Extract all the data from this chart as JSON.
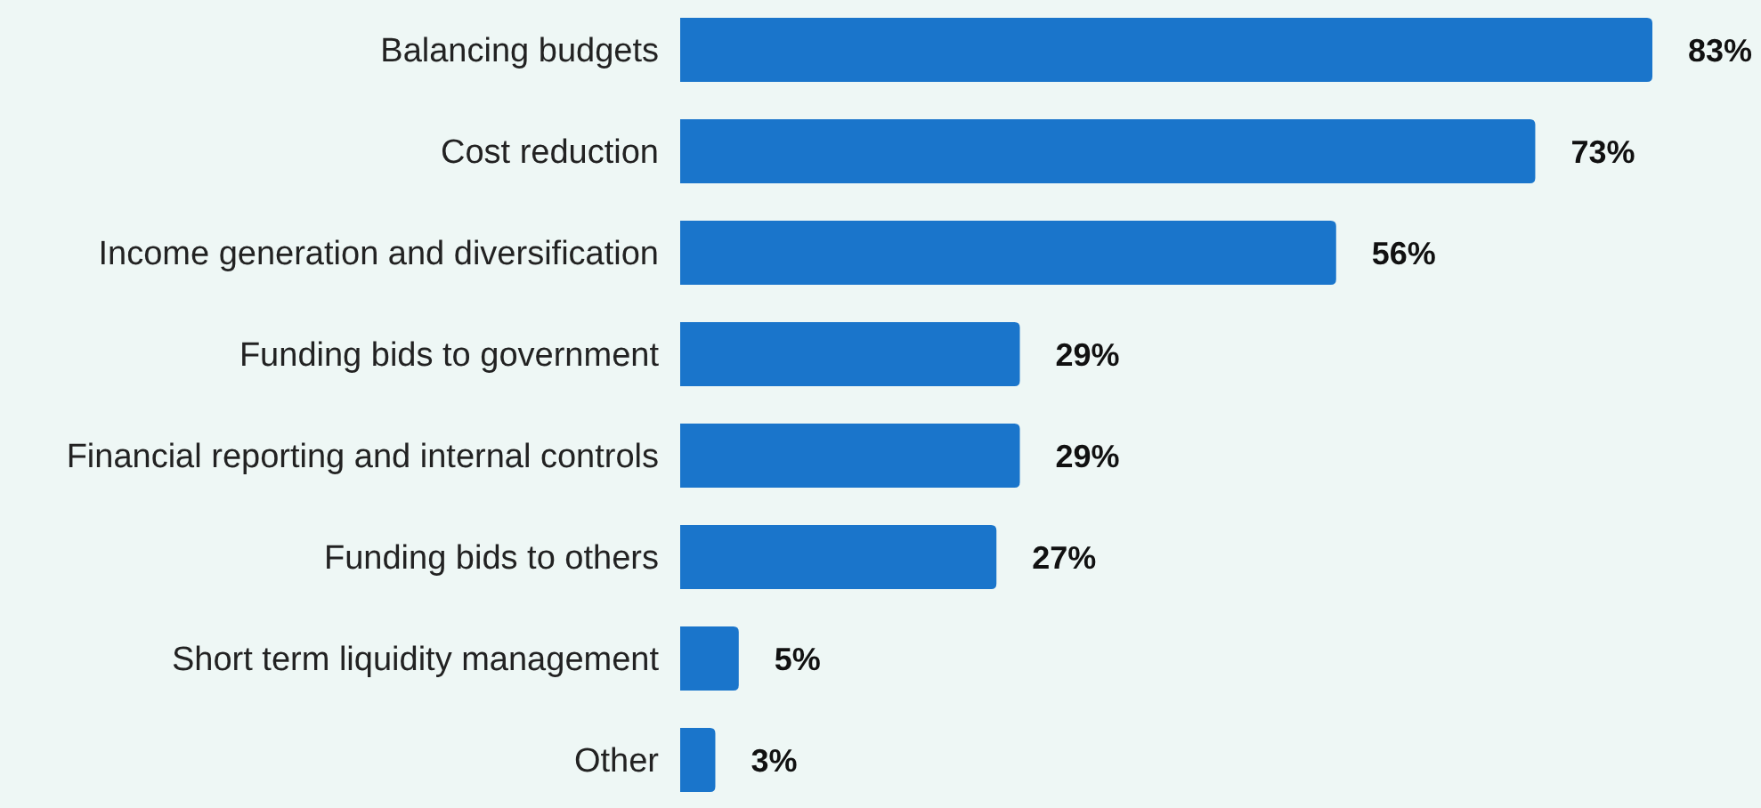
{
  "chart_data": {
    "type": "bar",
    "orientation": "horizontal",
    "categories": [
      "Balancing budgets",
      "Cost reduction",
      "Income generation and diversification",
      "Funding bids to government",
      "Financial reporting and internal controls",
      "Funding bids to others",
      "Short term liquidity management",
      "Other"
    ],
    "values": [
      83,
      73,
      56,
      29,
      29,
      27,
      5,
      3
    ],
    "value_labels": [
      "83%",
      "73%",
      "56%",
      "29%",
      "29%",
      "27%",
      "5%",
      "3%"
    ],
    "color": "#1a75cb"
  }
}
